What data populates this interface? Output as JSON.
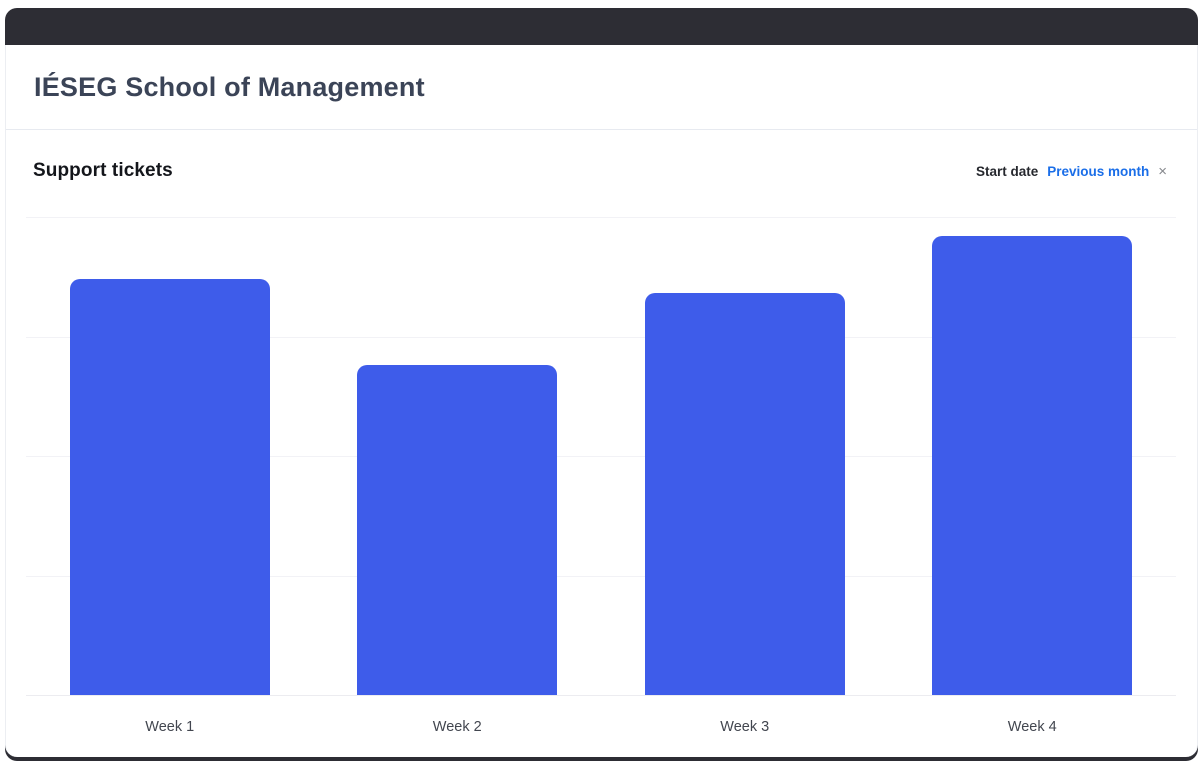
{
  "header": {
    "title": "IÉSEG School of Management"
  },
  "section": {
    "title": "Support tickets"
  },
  "filter": {
    "label": "Start date",
    "value": "Previous month",
    "close_icon": "×"
  },
  "colors": {
    "titlebar": "#2d2d34",
    "bar": "#3e5cea",
    "filter_link": "#1a6ee8",
    "gridline": "#f2f2f6"
  },
  "chart_data": {
    "type": "bar",
    "categories": [
      "Week 1",
      "Week 2",
      "Week 3",
      "Week 4"
    ],
    "values": [
      87,
      69,
      84,
      96
    ],
    "title": "Support tickets",
    "xlabel": "",
    "ylabel": "",
    "ylim": [
      0,
      100
    ],
    "grid": "horizontal",
    "legend": "none",
    "bar_color": "#3e5cea"
  }
}
